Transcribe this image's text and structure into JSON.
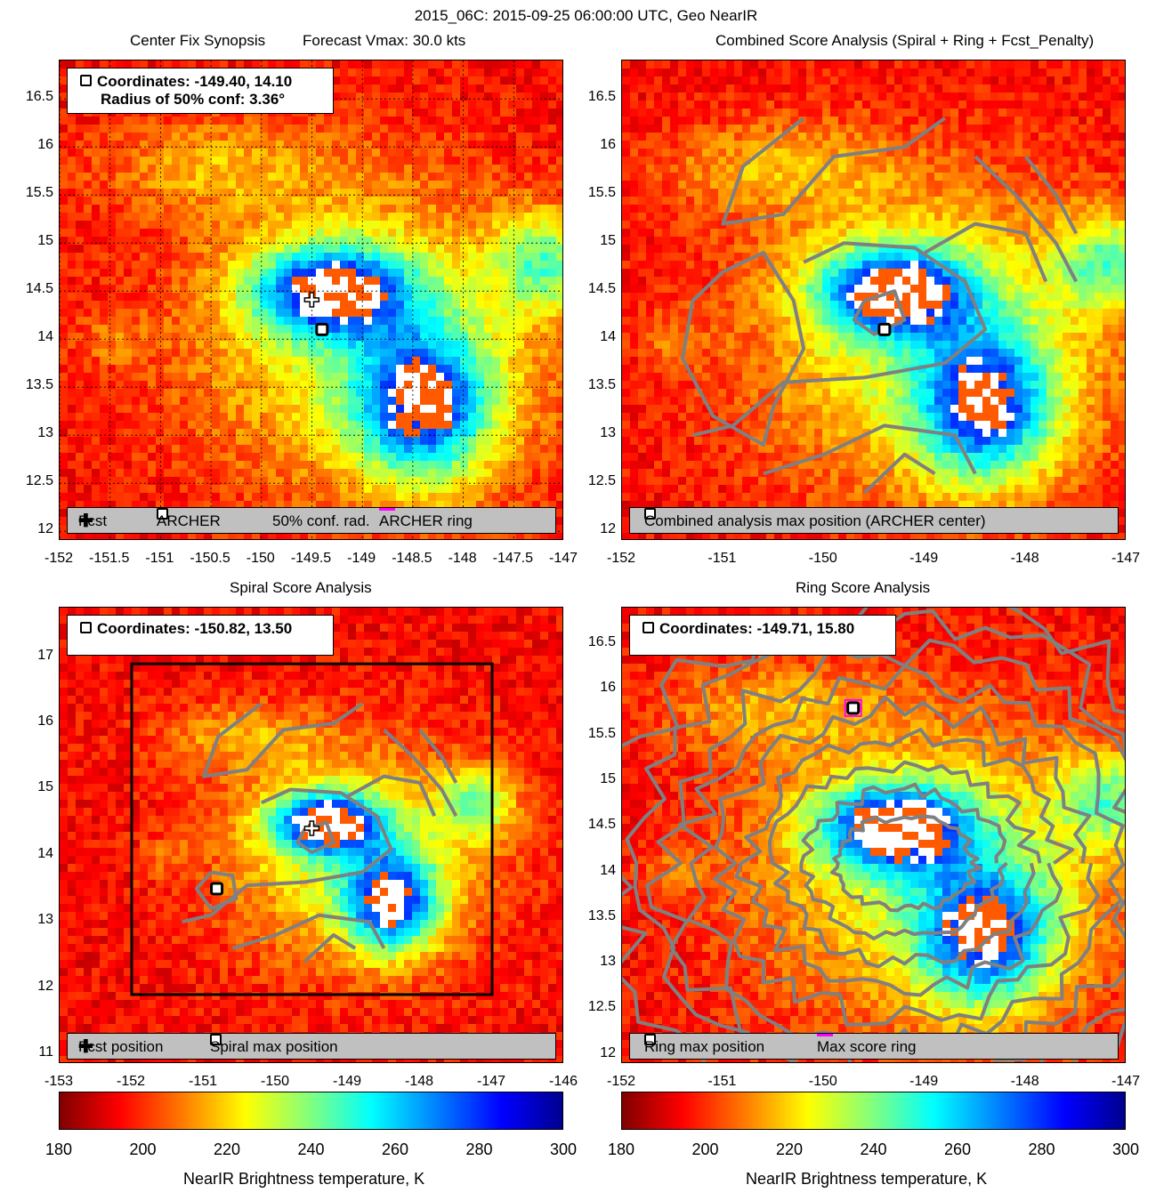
{
  "figure_title": "2015_06C: 2015-09-25 06:00:00 UTC, Geo NearIR",
  "panels": {
    "tl": {
      "title_left": "Center Fix Synopsis",
      "title_right": "Forecast Vmax: 30.0 kts",
      "info_line1": "Coordinates: -149.40, 14.10",
      "info_line2": "Radius of 50% conf: 3.36°",
      "legend": {
        "fcst": "Fcst",
        "archer": "ARCHER",
        "conf": "50% conf. rad.",
        "ring": "ARCHER ring"
      }
    },
    "tr": {
      "title": "Combined Score Analysis (Spiral + Ring + Fcst_Penalty)",
      "legend": {
        "label": "Combined analysis max position (ARCHER center)"
      }
    },
    "bl": {
      "title": "Spiral Score Analysis",
      "info_line1": "Coordinates: -150.82, 13.50",
      "legend": {
        "fcst": "Fcst position",
        "max": "Spiral max position"
      }
    },
    "br": {
      "title": "Ring Score Analysis",
      "info_line1": "Coordinates: -149.71, 15.80",
      "legend": {
        "max": "Ring max position",
        "ring": "Max score ring"
      }
    }
  },
  "colorbar": {
    "label": "NearIR Brightness temperature, K",
    "ticks": [
      "180",
      "200",
      "220",
      "240",
      "260",
      "280",
      "300"
    ],
    "min": 180,
    "max": 300
  },
  "chart_data": [
    {
      "type": "heatmap",
      "title": "Center Fix Synopsis",
      "subtitle": "Forecast Vmax: 30.0 kts",
      "xlim": [
        -152,
        -147
      ],
      "ylim": [
        11.9,
        16.9
      ],
      "xticks": [
        "-152",
        "-151.5",
        "-151",
        "-150.5",
        "-150",
        "-149.5",
        "-149",
        "-148.5",
        "-148",
        "-147.5",
        "-147"
      ],
      "yticks": [
        "12",
        "12.5",
        "13",
        "13.5",
        "14",
        "14.5",
        "15",
        "15.5",
        "16",
        "16.5"
      ],
      "fcst_position": [
        -149.5,
        14.4
      ],
      "archer_center": [
        -149.4,
        14.1
      ],
      "conf_radius_deg": 3.36
    },
    {
      "type": "heatmap",
      "title": "Combined Score Analysis (Spiral + Ring + Fcst_Penalty)",
      "xlim": [
        -152,
        -147
      ],
      "ylim": [
        11.9,
        16.9
      ],
      "xticks": [
        "-152",
        "-151",
        "-150",
        "-149",
        "-148",
        "-147"
      ],
      "yticks": [
        "12",
        "12.5",
        "13",
        "13.5",
        "14",
        "14.5",
        "15",
        "15.5",
        "16",
        "16.5"
      ],
      "max_position": [
        -149.4,
        14.1
      ]
    },
    {
      "type": "heatmap",
      "title": "Spiral Score Analysis",
      "xlim": [
        -153,
        -146
      ],
      "ylim": [
        10.85,
        17.75
      ],
      "xticks": [
        "-153",
        "-152",
        "-151",
        "-150",
        "-149",
        "-148",
        "-147",
        "-146"
      ],
      "yticks": [
        "11",
        "12",
        "13",
        "14",
        "15",
        "16",
        "17"
      ],
      "fcst_position": [
        -149.5,
        14.4
      ],
      "max_position": [
        -150.82,
        13.5
      ],
      "search_box": {
        "lon": [
          -152,
          -147
        ],
        "lat": [
          11.9,
          16.9
        ]
      }
    },
    {
      "type": "heatmap",
      "title": "Ring Score Analysis",
      "xlim": [
        -152,
        -147
      ],
      "ylim": [
        11.9,
        16.9
      ],
      "xticks": [
        "-152",
        "-151",
        "-150",
        "-149",
        "-148",
        "-147"
      ],
      "yticks": [
        "12",
        "12.5",
        "13",
        "13.5",
        "14",
        "14.5",
        "15",
        "15.5",
        "16",
        "16.5"
      ],
      "max_position": [
        -149.71,
        15.8
      ]
    }
  ]
}
